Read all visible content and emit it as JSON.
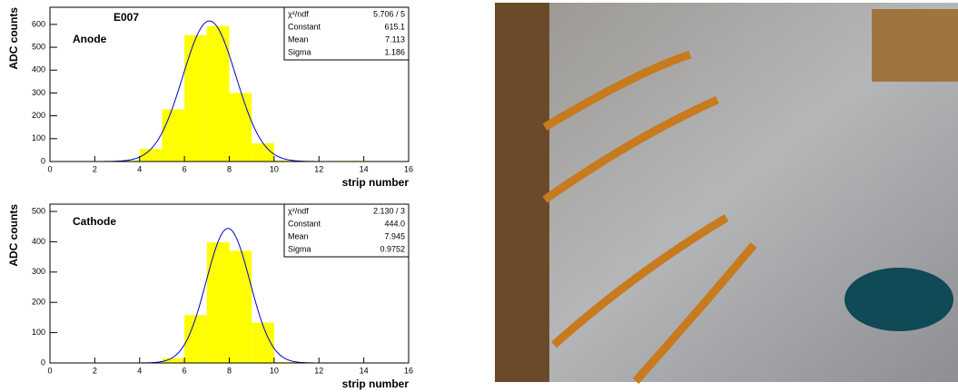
{
  "chart_data": [
    {
      "type": "histogram",
      "title": "E007",
      "label": "Anode",
      "bins": [
        2,
        3,
        4,
        5,
        6,
        7,
        8,
        9,
        10,
        11,
        12,
        13,
        14
      ],
      "values": [
        2,
        5,
        55,
        228,
        553,
        593,
        300,
        80,
        5,
        0,
        0,
        3
      ],
      "color": "#ffff00",
      "fit_color": "#0000cc",
      "xlim": [
        0,
        16
      ],
      "xticks": [
        0,
        2,
        4,
        6,
        8,
        10,
        12,
        14,
        16
      ],
      "ylim": [
        0,
        675
      ],
      "yticks": [
        0,
        100,
        200,
        300,
        400,
        500,
        600
      ],
      "xlabel": "strip number",
      "ylabel": "ADC counts",
      "chi2_label": "χ²/ndf",
      "chi2": "5.706  /  5",
      "fit": [
        {
          "name": "Constant",
          "value": 615.1
        },
        {
          "name": "Mean",
          "value": 7.113
        },
        {
          "name": "Sigma",
          "value": 1.186
        }
      ]
    },
    {
      "type": "histogram",
      "label": "Cathode",
      "bins": [
        4,
        5,
        6,
        7,
        8,
        9,
        10,
        11
      ],
      "values": [
        0,
        15,
        158,
        398,
        370,
        133,
        3
      ],
      "color": "#ffff00",
      "fit_color": "#0000cc",
      "xlim": [
        0,
        16
      ],
      "xticks": [
        0,
        2,
        4,
        6,
        8,
        10,
        12,
        14,
        16
      ],
      "ylim": [
        0,
        524
      ],
      "yticks": [
        0,
        100,
        200,
        300,
        400,
        500
      ],
      "xlabel": "strip number",
      "ylabel": "ADC counts",
      "chi2_label": "χ²/ndf",
      "chi2": "2.130  /  3",
      "fit": [
        {
          "name": "Constant",
          "value": 444,
          "label": "444.0"
        },
        {
          "name": "Mean",
          "value": 7.945
        },
        {
          "name": "Sigma",
          "value": 0.9752
        }
      ]
    }
  ]
}
